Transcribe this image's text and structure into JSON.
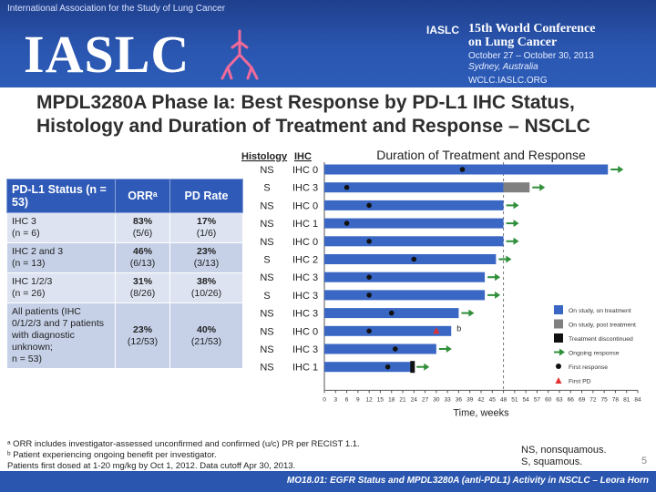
{
  "header": {
    "top_text": "International Association for the Study of Lung Cancer",
    "logo": "IASLC",
    "conf_brand": "IASLC",
    "conf_title_1": "15th World Conference",
    "conf_title_2": "on Lung Cancer",
    "conf_dates": "October 27 – October 30, 2013",
    "conf_location": "Sydney, Australia",
    "conf_url": "WCLC.IASLC.ORG"
  },
  "slide": {
    "title_line1": "MPDL3280A Phase Ia: Best Response by PD-L1 IHC Status,",
    "title_line2": "Histology and Duration of Treatment and Response – NSCLC",
    "slide_number": "5",
    "footer": "MO18.01: EGFR Status and MPDL3280A (anti-PDL1) Activity in NSCLC – Leora Horn"
  },
  "table": {
    "headers": [
      "PD-L1 Status (n = 53)",
      "ORRᵃ",
      "PD Rate"
    ],
    "rows": [
      {
        "status_1": "IHC 3",
        "status_2": "(n = 6)",
        "orr": "83%",
        "orr_frac": "(5/6)",
        "pd": "17%",
        "pd_frac": "(1/6)"
      },
      {
        "status_1": "IHC 2 and 3",
        "status_2": "(n = 13)",
        "orr": "46%",
        "orr_frac": "(6/13)",
        "pd": "23%",
        "pd_frac": "(3/13)"
      },
      {
        "status_1": "IHC 1/2/3",
        "status_2": "(n = 26)",
        "orr": "31%",
        "orr_frac": "(8/26)",
        "pd": "38%",
        "pd_frac": "(10/26)"
      },
      {
        "status_1": "All patients (IHC 0/1/2/3 and 7 patients with diagnostic unknown;",
        "status_2": "n = 53)",
        "orr": "23%",
        "orr_frac": "(12/53)",
        "pd": "40%",
        "pd_frac": "(21/53)"
      }
    ]
  },
  "footnotes": {
    "a": "ᵃ ORR includes investigator-assessed unconfirmed and confirmed (u/c) PR per RECIST 1.1.",
    "b": "ᵇ Patient experiencing ongoing benefit per investigator.",
    "c": "Patients first dosed at 1-20 mg/kg by Oct 1, 2012. Data cutoff Apr 30, 2013."
  },
  "abbrev": {
    "ns": "NS, nonsquamous.",
    "s": "S, squamous."
  },
  "chart_data": {
    "type": "swimmer",
    "title": "Duration of Treatment and Response",
    "xlabel": "Time, weeks",
    "col_histology": "Histology",
    "col_ihc": "IHC",
    "xlim": [
      0,
      84
    ],
    "xticks": [
      0,
      3,
      6,
      9,
      12,
      15,
      18,
      21,
      24,
      27,
      30,
      33,
      36,
      39,
      42,
      45,
      48,
      51,
      54,
      57,
      60,
      63,
      66,
      69,
      72,
      75,
      78,
      81,
      84
    ],
    "cutoff_week": 48,
    "series_colors": {
      "on_treatment": "#3a67c4",
      "post_treatment": "#808080",
      "discontinued": "#111111",
      "ongoing": "#2f8f3a",
      "first_response": "#111111",
      "first_pd": "#e23030"
    },
    "legend": [
      {
        "key": "on_treatment",
        "label": "On study, on treatment"
      },
      {
        "key": "post_treatment",
        "label": "On study, post treatment"
      },
      {
        "key": "discontinued",
        "label": "Treatment discontinued"
      },
      {
        "key": "ongoing",
        "label": "Ongoing response"
      },
      {
        "key": "first_response",
        "label": "First response"
      },
      {
        "key": "first_pd",
        "label": "First PD"
      }
    ],
    "patients": [
      {
        "histology": "NS",
        "ihc": "IHC 0",
        "on_treatment": 76,
        "post_treatment": 0,
        "first_response": 37,
        "ongoing": true,
        "discontinued": false,
        "first_pd": null,
        "note": ""
      },
      {
        "histology": "S",
        "ihc": "IHC 3",
        "on_treatment": 48,
        "post_treatment": 7,
        "first_response": 6,
        "ongoing": true,
        "discontinued": false,
        "first_pd": null,
        "note": ""
      },
      {
        "histology": "NS",
        "ihc": "IHC 0",
        "on_treatment": 48,
        "post_treatment": 0,
        "first_response": 12,
        "ongoing": true,
        "discontinued": false,
        "first_pd": null,
        "note": ""
      },
      {
        "histology": "NS",
        "ihc": "IHC 1",
        "on_treatment": 48,
        "post_treatment": 0,
        "first_response": 6,
        "ongoing": true,
        "discontinued": false,
        "first_pd": null,
        "note": ""
      },
      {
        "histology": "NS",
        "ihc": "IHC 0",
        "on_treatment": 48,
        "post_treatment": 0,
        "first_response": 12,
        "ongoing": true,
        "discontinued": false,
        "first_pd": null,
        "note": ""
      },
      {
        "histology": "S",
        "ihc": "IHC 2",
        "on_treatment": 46,
        "post_treatment": 0,
        "first_response": 24,
        "ongoing": true,
        "discontinued": false,
        "first_pd": null,
        "note": ""
      },
      {
        "histology": "NS",
        "ihc": "IHC 3",
        "on_treatment": 43,
        "post_treatment": 0,
        "first_response": 12,
        "ongoing": true,
        "discontinued": false,
        "first_pd": null,
        "note": ""
      },
      {
        "histology": "S",
        "ihc": "IHC 3",
        "on_treatment": 43,
        "post_treatment": 0,
        "first_response": 12,
        "ongoing": true,
        "discontinued": false,
        "first_pd": null,
        "note": ""
      },
      {
        "histology": "NS",
        "ihc": "IHC 3",
        "on_treatment": 36,
        "post_treatment": 0,
        "first_response": 18,
        "ongoing": true,
        "discontinued": false,
        "first_pd": null,
        "note": ""
      },
      {
        "histology": "NS",
        "ihc": "IHC 0",
        "on_treatment": 34,
        "post_treatment": 0,
        "first_response": 12,
        "ongoing": false,
        "discontinued": false,
        "first_pd": 30,
        "note": "b"
      },
      {
        "histology": "NS",
        "ihc": "IHC 3",
        "on_treatment": 30,
        "post_treatment": 0,
        "first_response": 19,
        "ongoing": true,
        "discontinued": false,
        "first_pd": null,
        "note": ""
      },
      {
        "histology": "NS",
        "ihc": "IHC 1",
        "on_treatment": 24,
        "post_treatment": 0,
        "first_response": 17,
        "ongoing": true,
        "discontinued": true,
        "first_pd": null,
        "note": ""
      }
    ]
  }
}
